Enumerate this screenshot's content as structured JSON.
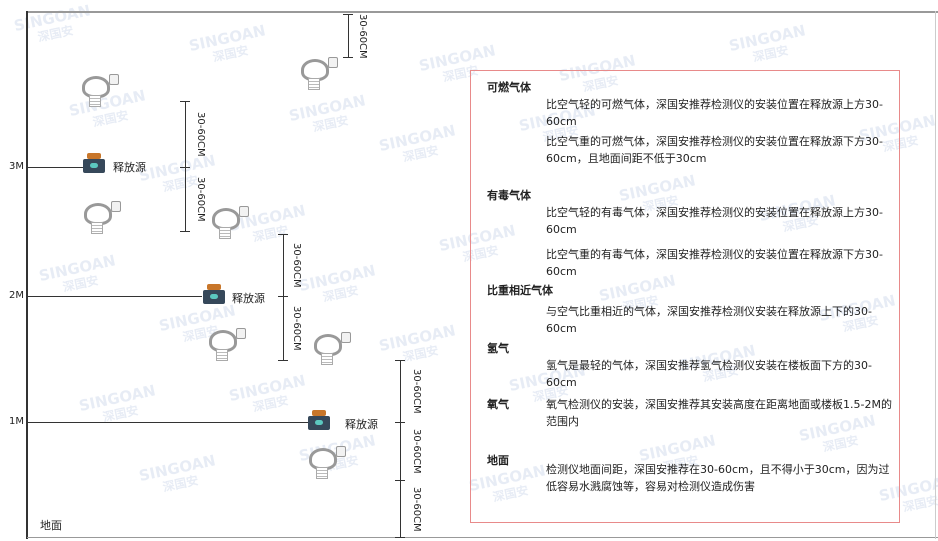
{
  "watermark": {
    "brand": "SINGOAN",
    "chinese": "深国安"
  },
  "levels": [
    {
      "label": "3M"
    },
    {
      "label": "2M"
    },
    {
      "label": "1M"
    }
  ],
  "ground_label": "地面",
  "source_label": "释放源",
  "dimension_label": "30-60CM",
  "textbox": {
    "sections": [
      {
        "heading": "可燃气体",
        "paragraphs": [
          "比空气轻的可燃气体，深国安推荐检测仪的安装位置在释放源上方30-60cm",
          "比空气重的可燃气体，深国安推荐检测仪的安装位置在释放源下方30-60cm，且地面间距不低于30cm"
        ]
      },
      {
        "heading": "有毒气体",
        "paragraphs": [
          "比空气轻的有毒气体，深国安推荐检测仪的安装位置在释放源上方30-60cm",
          "比空气重的有毒气体，深国安推荐检测仪的安装位置在释放源下方30-60cm"
        ]
      },
      {
        "heading": "比重相近气体",
        "paragraphs": [
          "与空气比重相近的气体，深国安推荐检测仪安装在释放源上下的30-60cm"
        ]
      },
      {
        "heading": "氢气",
        "paragraphs": [
          "氢气是最轻的气体，深国安推荐氢气检测仪安装在楼板面下方的30-60cm"
        ]
      },
      {
        "heading": "氧气",
        "paragraphs": [
          "氧气检测仪的安装，深国安推荐其安装高度在距离地面或楼板1.5-2M的范围内"
        ]
      },
      {
        "heading": "地面",
        "paragraphs": [
          "检测仪地面间距，深国安推荐在30-60cm，且不得小于30cm，因为过低容易水溅腐蚀等，容易对检测仪造成伤害"
        ]
      }
    ]
  }
}
